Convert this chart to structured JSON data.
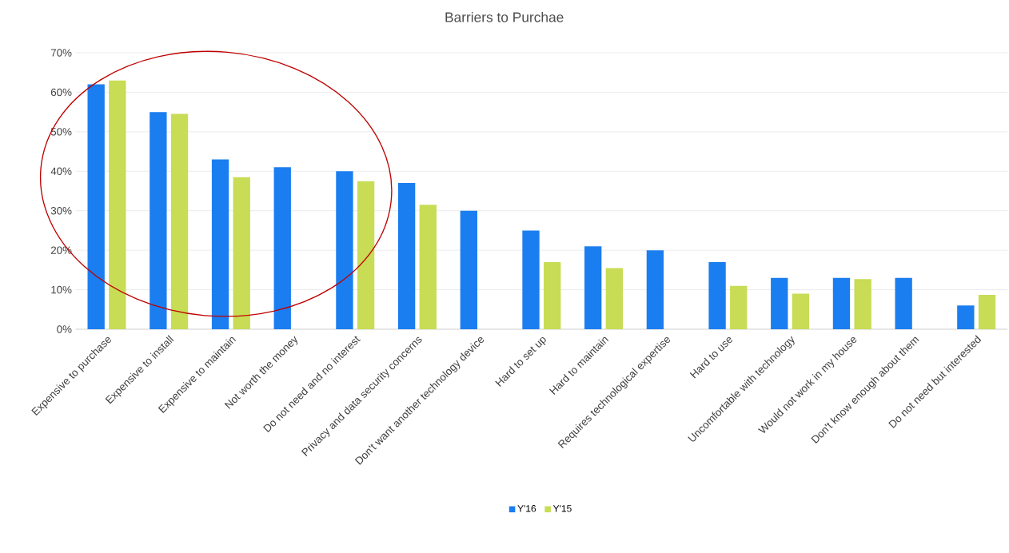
{
  "chart_data": {
    "type": "bar",
    "title": "Barriers to Purchae",
    "categories": [
      "Expensive to purchase",
      "Expensive to install",
      "Expensive to maintain",
      "Not worth the money",
      "Do not need and no interest",
      "Privacy and data security concerns",
      "Don't want another technology device",
      "Hard to set up",
      "Hard to maintain",
      "Requires technological expertise",
      "Hard to use",
      "Uncomfortable with technology",
      "Would not work in my house",
      "Don't know enough about them",
      "Do not need but interested"
    ],
    "series": [
      {
        "name": "Y'16",
        "color": "#1a7ef0",
        "values": [
          62,
          55,
          43,
          41,
          40,
          37,
          30,
          25,
          21,
          20,
          17,
          13,
          13,
          13,
          6
        ]
      },
      {
        "name": "Y'15",
        "color": "#c8dc55",
        "values": [
          63,
          54.5,
          38.5,
          null,
          37.5,
          31.5,
          null,
          17,
          15.5,
          null,
          11,
          9,
          12.7,
          null,
          8.7
        ]
      }
    ],
    "ylim": [
      0,
      70
    ],
    "yticks": [
      {
        "value": 0,
        "label": "0%"
      },
      {
        "value": 10,
        "label": "10%"
      },
      {
        "value": 20,
        "label": "20%"
      },
      {
        "value": 30,
        "label": "30%"
      },
      {
        "value": 40,
        "label": "40%"
      },
      {
        "value": 50,
        "label": "50%"
      },
      {
        "value": 60,
        "label": "60%"
      },
      {
        "value": 70,
        "label": "70%"
      }
    ],
    "grid": "y",
    "legend": "bottom"
  }
}
